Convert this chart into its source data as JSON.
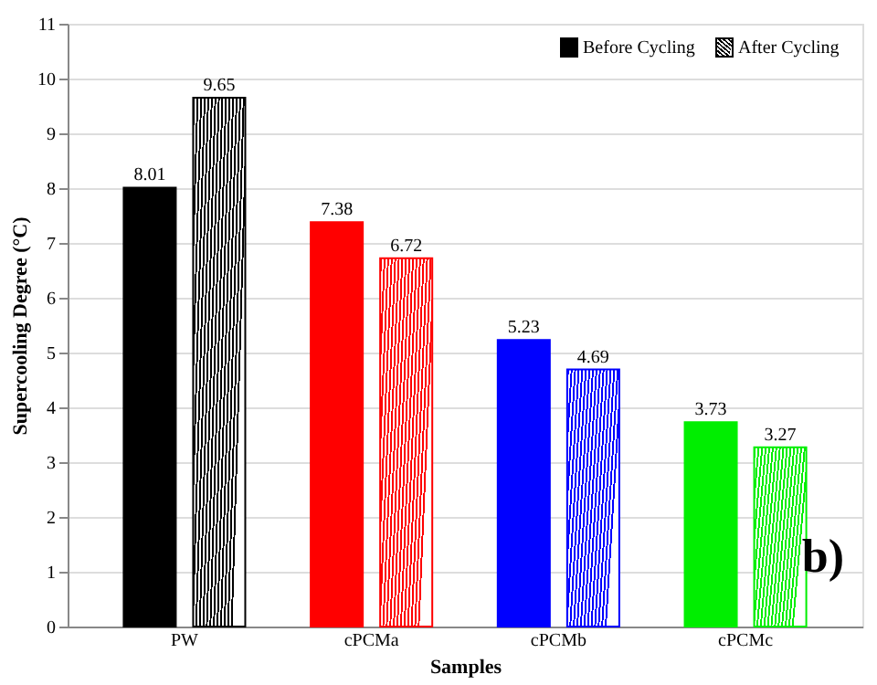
{
  "chart_data": {
    "type": "bar",
    "xlabel": "Samples",
    "ylabel": "Supercooling Degree (°C)",
    "categories": [
      "PW",
      "cPCMa",
      "cPCMb",
      "cPCMc"
    ],
    "series": [
      {
        "name": "Before Cycling",
        "colors": [
          "#000000",
          "#ff0000",
          "#0000ff",
          "#00ee00"
        ],
        "values": [
          8.01,
          7.38,
          5.23,
          3.73
        ]
      },
      {
        "name": "After Cycling",
        "colors": [
          "#000000",
          "#ff0000",
          "#0000ff",
          "#00ee00"
        ],
        "values": [
          9.65,
          6.72,
          4.69,
          3.27
        ]
      }
    ],
    "ylim": [
      0,
      11
    ],
    "yticks": [
      0,
      1,
      2,
      3,
      4,
      5,
      6,
      7,
      8,
      9,
      10,
      11
    ],
    "grid": "y",
    "legend": "top right",
    "data_labels": true,
    "annotations": [
      "b)"
    ]
  }
}
